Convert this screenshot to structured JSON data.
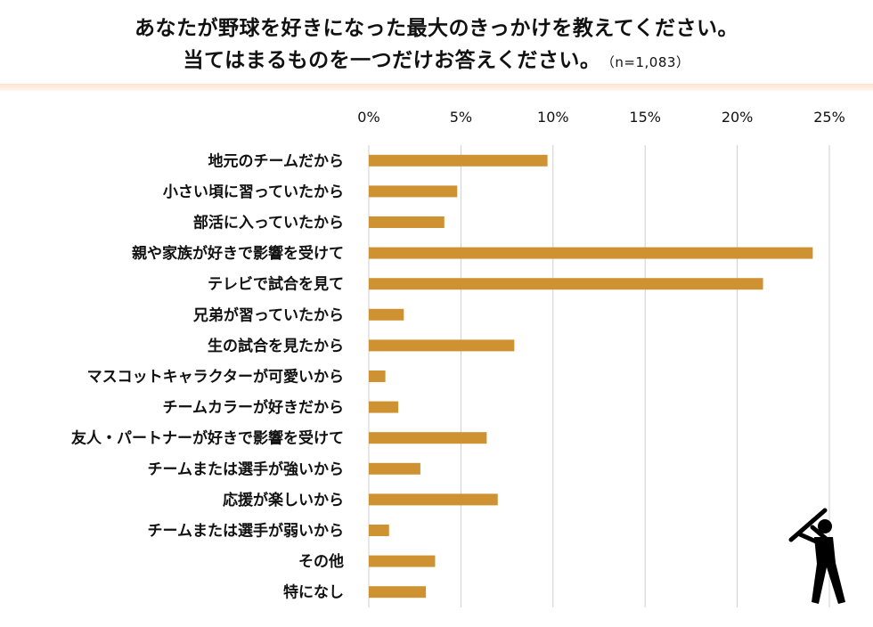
{
  "header": {
    "line1": "あなたが野球を好きになった最大のきっかけを教えてください。",
    "line2": "当てはまるものを一つだけお答えください。",
    "sample": "（n=1,083）"
  },
  "colors": {
    "bar": "#cf9233",
    "grid": "#cfcfcf",
    "accent_bar": "#fbe4d2"
  },
  "icon": "baseball-batter-icon",
  "chart_data": {
    "type": "bar",
    "orientation": "horizontal",
    "title": "あなたが野球を好きになった最大のきっかけを教えてください。当てはまるものを一つだけお答えください。",
    "xlabel": "",
    "ylabel": "",
    "xlim": [
      0,
      25
    ],
    "ticks": [
      0,
      5,
      10,
      15,
      20,
      25
    ],
    "tick_labels": [
      "0%",
      "5%",
      "10%",
      "15%",
      "20%",
      "25%"
    ],
    "grid": true,
    "categories": [
      "地元のチームだから",
      "小さい頃に習っていたから",
      "部活に入っていたから",
      "親や家族が好きで影響を受けて",
      "テレビで試合を見て",
      "兄弟が習っていたから",
      "生の試合を見たから",
      "マスコットキャラクターが可愛いから",
      "チームカラーが好きだから",
      "友人・パートナーが好きで影響を受けて",
      "チームまたは選手が強いから",
      "応援が楽しいから",
      "チームまたは選手が弱いから",
      "その他",
      "特になし"
    ],
    "values": [
      9.7,
      4.8,
      4.1,
      24.1,
      21.4,
      1.9,
      7.9,
      0.9,
      1.6,
      6.4,
      2.8,
      7.0,
      1.1,
      3.6,
      3.1
    ]
  }
}
